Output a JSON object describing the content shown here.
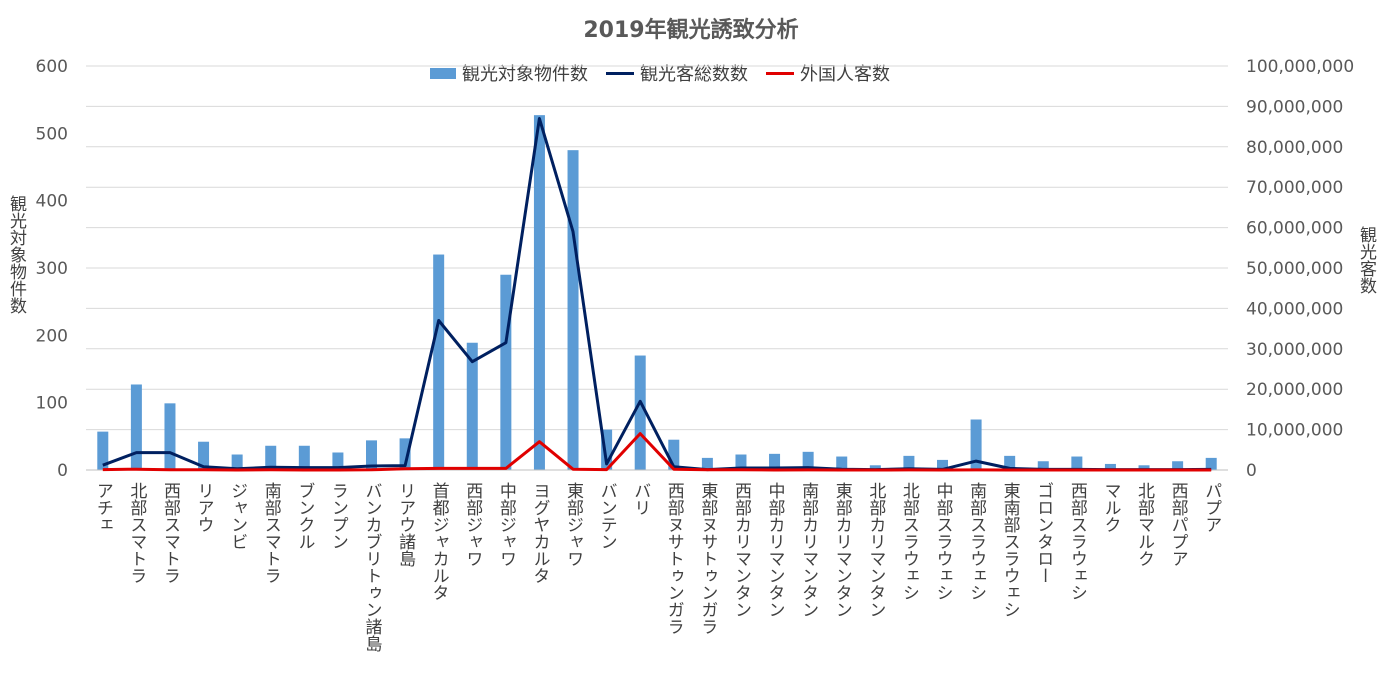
{
  "chart_data": {
    "type": "bar",
    "title": "2019年観光誘致分析",
    "ylabel": "観光対象物件数",
    "y2label": "観光客数",
    "ylim": [
      0,
      600
    ],
    "y2lim": [
      0,
      100000000
    ],
    "y_ticks": [
      "0",
      "100",
      "200",
      "300",
      "400",
      "500",
      "600"
    ],
    "y2_ticks": [
      "0",
      "10,000,000",
      "20,000,000",
      "30,000,000",
      "40,000,000",
      "50,000,000",
      "60,000,000",
      "70,000,000",
      "80,000,000",
      "90,000,000",
      "100,000,000"
    ],
    "grid": true,
    "legend_position": "top",
    "categories": [
      "アチェ",
      "北部スマトラ",
      "西部スマトラ",
      "リアウ",
      "ジャンビ",
      "南部スマトラ",
      "ブンクル",
      "ランプン",
      "バンカブリトゥン諸島",
      "リアウ諸島",
      "首都ジャカルタ",
      "西部ジャワ",
      "中部ジャワ",
      "ヨグヤカルタ",
      "東部ジャワ",
      "バンテン",
      "バリ",
      "西部ヌサトゥンガラ",
      "東部ヌサトゥンガラ",
      "西部カリマンタン",
      "中部カリマンタン",
      "南部カリマンタン",
      "東部カリマンタン",
      "北部カリマンタン",
      "北部スラウェシ",
      "中部スラウェシ",
      "南部スラウェシ",
      "東南部スラウェシ",
      "ゴロンタロー",
      "西部スラウェシ",
      "マルク",
      "北部マルク",
      "西部パプア",
      "パプア"
    ],
    "series": [
      {
        "name": "観光対象物件数",
        "type": "bar",
        "axis": "left",
        "color": "#5B9BD5",
        "values": [
          57,
          127,
          99,
          42,
          23,
          36,
          36,
          26,
          44,
          47,
          320,
          189,
          290,
          527,
          475,
          60,
          170,
          45,
          18,
          23,
          24,
          27,
          20,
          7,
          21,
          15,
          75,
          21,
          13,
          20,
          9,
          7,
          13,
          18
        ]
      },
      {
        "name": "観光客総数数",
        "type": "line",
        "axis": "right",
        "color": "#002060",
        "values": [
          1200000,
          4300000,
          4300000,
          800000,
          300000,
          700000,
          600000,
          600000,
          1000000,
          1100000,
          37000000,
          26800000,
          31500000,
          87000000,
          59000000,
          1500000,
          17000000,
          800000,
          100000,
          500000,
          500000,
          600000,
          200000,
          100000,
          300000,
          150000,
          2200000,
          400000,
          150000,
          150000,
          100000,
          100000,
          100000,
          150000
        ]
      },
      {
        "name": "外国人客数",
        "type": "line",
        "axis": "right",
        "color": "#E00000",
        "values": [
          100000,
          200000,
          50000,
          50000,
          10000,
          50000,
          10000,
          10000,
          50000,
          300000,
          400000,
          400000,
          400000,
          7000000,
          200000,
          100000,
          9000000,
          200000,
          50000,
          50000,
          10000,
          30000,
          10000,
          10000,
          20000,
          10000,
          30000,
          10000,
          10000,
          10000,
          10000,
          10000,
          10000,
          10000
        ]
      }
    ]
  }
}
